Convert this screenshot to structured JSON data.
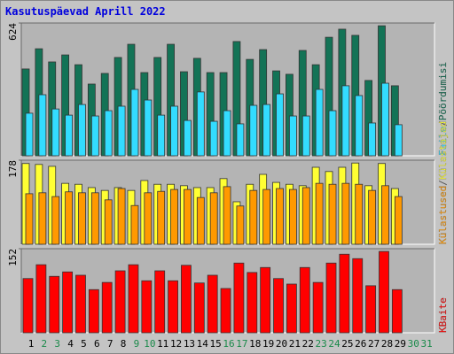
{
  "title": "Kasutuspäevad Aprill 2022",
  "legend_separator": "/",
  "chart_data": [
    {
      "type": "bar",
      "ylim": [
        0,
        624
      ],
      "yticks": [
        624
      ],
      "series": [
        {
          "name": "Pöördumisi",
          "color": "#137356",
          "values": [
            408,
            503,
            441,
            474,
            428,
            337,
            387,
            462,
            524,
            391,
            462,
            524,
            395,
            458,
            391,
            391,
            537,
            453,
            499,
            399,
            383,
            495,
            428,
            557,
            595,
            566,
            354,
            611,
            329,
            null,
            null
          ]
        },
        {
          "name": "Faile",
          "color": "#33dcff",
          "values": [
            200,
            287,
            220,
            191,
            241,
            187,
            212,
            233,
            312,
            262,
            191,
            233,
            166,
            300,
            162,
            212,
            150,
            237,
            241,
            291,
            187,
            187,
            312,
            212,
            329,
            283,
            154,
            341,
            146,
            null,
            null
          ]
        }
      ]
    },
    {
      "type": "bar",
      "ylim": [
        0,
        178
      ],
      "yticks": [
        178
      ],
      "series": [
        {
          "name": "Külastajad",
          "color": "#ffff33",
          "values": [
            171,
            169,
            165,
            129,
            127,
            120,
            114,
            120,
            114,
            135,
            127,
            127,
            124,
            120,
            120,
            139,
            90,
            127,
            148,
            131,
            127,
            124,
            163,
            154,
            163,
            172,
            124,
            171,
            118,
            null,
            null
          ]
        },
        {
          "name": "Külastused",
          "color": "#ff9900",
          "values": [
            107,
            109,
            101,
            111,
            109,
            109,
            94,
            118,
            82,
            109,
            112,
            116,
            116,
            99,
            109,
            122,
            81,
            114,
            116,
            118,
            116,
            120,
            129,
            127,
            129,
            127,
            114,
            124,
            101,
            null,
            null
          ]
        }
      ]
    },
    {
      "type": "bar",
      "ylim": [
        0,
        152
      ],
      "yticks": [
        152
      ],
      "series": [
        {
          "name": "KBaite",
          "color": "#ff0000",
          "values": [
            98,
            123,
            102,
            110,
            104,
            78,
            91,
            112,
            123,
            94,
            112,
            94,
            122,
            90,
            104,
            80,
            126,
            109,
            118,
            98,
            88,
            118,
            91,
            126,
            142,
            134,
            85,
            147,
            78,
            null,
            null
          ]
        }
      ],
      "categories": [
        "1",
        "2",
        "3",
        "4",
        "5",
        "6",
        "7",
        "8",
        "9",
        "10",
        "11",
        "12",
        "13",
        "14",
        "15",
        "16",
        "17",
        "18",
        "19",
        "20",
        "21",
        "22",
        "23",
        "24",
        "25",
        "26",
        "27",
        "28",
        "29",
        "30",
        "31"
      ],
      "category_colors": [
        "#000000",
        "#1a8a4a",
        "#1a8a4a",
        "#000000",
        "#000000",
        "#000000",
        "#000000",
        "#000000",
        "#1a8a4a",
        "#1a8a4a",
        "#000000",
        "#000000",
        "#000000",
        "#000000",
        "#000000",
        "#1a8a4a",
        "#1a8a4a",
        "#000000",
        "#000000",
        "#000000",
        "#000000",
        "#000000",
        "#1a8a4a",
        "#1a8a4a",
        "#000000",
        "#000000",
        "#000000",
        "#000000",
        "#000000",
        "#1a8a4a",
        "#1a8a4a"
      ]
    }
  ]
}
